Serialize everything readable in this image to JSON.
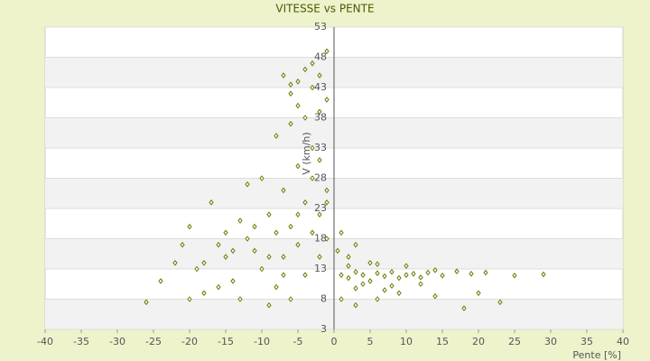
{
  "chart_data": {
    "type": "scatter",
    "title": "VITESSE vs PENTE",
    "x_label": "Pente [%]",
    "y_label": "V (km/h)",
    "xlim": [
      -40,
      40
    ],
    "xticks": [
      -40,
      -35,
      -30,
      -25,
      -20,
      -15,
      -10,
      -5,
      0,
      5,
      10,
      15,
      20,
      25,
      30,
      35,
      40
    ],
    "ylim": [
      3,
      53
    ],
    "yticks": [
      3,
      8,
      13,
      18,
      23,
      28,
      33,
      38,
      43,
      48,
      53
    ],
    "grid": true,
    "color": "#6b7a00",
    "x": [
      1,
      2,
      3,
      4,
      5,
      6,
      7,
      8,
      9,
      10,
      11,
      12,
      13,
      14,
      15,
      17,
      19,
      21,
      25,
      29,
      2,
      4,
      6,
      8,
      3,
      5,
      7,
      10,
      12,
      1,
      3,
      6,
      9,
      14,
      18,
      20,
      23,
      0.5,
      1,
      2,
      3,
      -1,
      -26,
      -24,
      -22,
      -20,
      -19,
      -18,
      -17,
      -16,
      -15,
      -14,
      -13,
      -12,
      -11,
      -10,
      -10,
      -9,
      -8,
      -8,
      -7,
      -7,
      -6,
      -6,
      -5,
      -5,
      -4,
      -4,
      -3,
      -3,
      -2,
      -2,
      -1,
      -1,
      -12,
      -14,
      -16,
      -18,
      -20,
      -11,
      -9,
      -7,
      -5,
      -3,
      -4,
      -8,
      -6,
      -2,
      -9,
      -13,
      -15,
      -21,
      -7,
      -6,
      -5,
      -4,
      -3,
      -2,
      -1,
      -6,
      -3,
      -1,
      -5,
      -2
    ],
    "y": [
      12,
      11.5,
      12.5,
      12,
      11,
      12.3,
      11.8,
      12.5,
      11.5,
      12,
      12.2,
      11.6,
      12.4,
      12.8,
      11.9,
      12.6,
      12.2,
      12.4,
      11.9,
      12.1,
      13.5,
      10.5,
      13.8,
      10.2,
      9.8,
      14,
      9.5,
      13.5,
      10.5,
      8,
      7,
      8,
      9,
      8.5,
      6.5,
      9,
      7.5,
      16,
      19,
      15,
      17,
      24,
      7.5,
      11,
      14,
      20,
      13,
      9,
      24,
      17,
      15,
      11,
      21,
      18,
      16,
      28,
      13,
      22,
      19,
      10,
      26,
      15,
      20,
      8,
      30,
      17,
      24,
      12,
      28,
      19,
      22,
      15,
      26,
      18,
      27,
      16,
      10,
      14,
      8,
      20,
      15,
      12,
      22,
      33,
      38,
      35,
      37,
      31,
      7,
      8,
      19,
      17,
      45,
      43.5,
      44,
      46,
      43,
      45,
      41,
      42,
      47,
      49,
      40,
      39
    ]
  }
}
